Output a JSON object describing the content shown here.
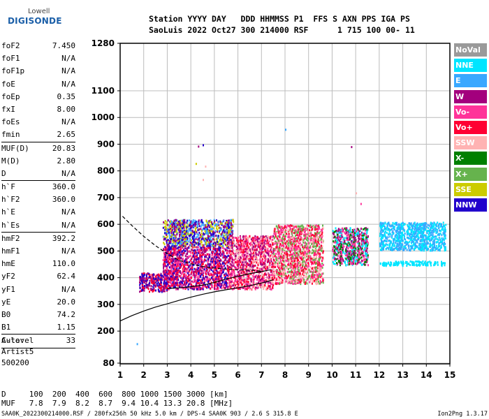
{
  "logo": {
    "company": "Lowell",
    "product": "DIGISONDE"
  },
  "header": {
    "line1": "Station YYYY DAY   DDD HHMMSS P1  FFS S AXN PPS IGA PS",
    "line2": "SaoLuis 2022 Oct27 300 214000 RSF      1 715 100 00- 11"
  },
  "parameters": [
    {
      "label": "foF2",
      "value": "7.450"
    },
    {
      "label": "foF1",
      "value": "N/A"
    },
    {
      "label": "foF1p",
      "value": "N/A"
    },
    {
      "label": "foE",
      "value": "N/A"
    },
    {
      "label": "foEp",
      "value": "0.35"
    },
    {
      "label": "fxI",
      "value": "8.00"
    },
    {
      "label": "foEs",
      "value": "N/A"
    },
    {
      "label": "fmin",
      "value": "2.65"
    },
    {
      "label": "MUF(D)",
      "value": "20.83"
    },
    {
      "label": "M(D)",
      "value": "2.80"
    },
    {
      "label": "D",
      "value": "N/A"
    },
    {
      "label": "h`F",
      "value": "360.0"
    },
    {
      "label": "h`F2",
      "value": "360.0"
    },
    {
      "label": "h`E",
      "value": "N/A"
    },
    {
      "label": "h`Es",
      "value": "N/A"
    },
    {
      "label": "hmF2",
      "value": "392.2"
    },
    {
      "label": "hmF1",
      "value": "N/A"
    },
    {
      "label": "hmE",
      "value": "110.0"
    },
    {
      "label": "yF2",
      "value": "62.4"
    },
    {
      "label": "yF1",
      "value": "N/A"
    },
    {
      "label": "yE",
      "value": "20.0"
    },
    {
      "label": "B0",
      "value": "74.2"
    },
    {
      "label": "B1",
      "value": "1.15"
    },
    {
      "label": "C-level",
      "value": "33"
    }
  ],
  "auto": {
    "line1": "Auto:",
    "line2": "Artist5",
    "line3": "500200"
  },
  "muf_table": {
    "distance_row": "D     100  200  400  600  800 1000 1500 3000 [km]",
    "muf_row": "MUF   7.8  7.9  8.2  8.7  9.4 10.4 13.3 20.8 [MHz]"
  },
  "footer": {
    "left": "SAA0K_2022300214000.RSF / 280fx256h 50 kHz 5.0 km / DPS-4 SAA0K 903 / 2.6 S 315.8 E",
    "right": "Ion2Png 1.3.17"
  },
  "legend": [
    {
      "label": "NoVal",
      "color": "#9a9a9a"
    },
    {
      "label": "NNE",
      "color": "#00e5ff"
    },
    {
      "label": "E",
      "color": "#39a8ff"
    },
    {
      "label": "W",
      "color": "#a3007d"
    },
    {
      "label": "Vo-",
      "color": "#ff3399"
    },
    {
      "label": "Vo+",
      "color": "#ff0033"
    },
    {
      "label": "SSW",
      "color": "#ffb3b3"
    },
    {
      "label": "X-",
      "color": "#008000"
    },
    {
      "label": "X+",
      "color": "#66b34d"
    },
    {
      "label": "SSE",
      "color": "#cccc00"
    },
    {
      "label": "NNW",
      "color": "#2200cc"
    }
  ],
  "chart_data": {
    "type": "scatter",
    "title": "",
    "xlabel": "",
    "ylabel": "",
    "xlim": [
      1,
      15
    ],
    "ylim": [
      80,
      1280
    ],
    "x_ticks": [
      1,
      2,
      3,
      4,
      5,
      6,
      7,
      8,
      9,
      10,
      11,
      12,
      13,
      14,
      15
    ],
    "y_ticks": [
      80,
      200,
      300,
      400,
      500,
      600,
      700,
      800,
      900,
      1000,
      1100,
      1280
    ],
    "grid": true,
    "legend_placement": "right",
    "series": [
      {
        "name": "Virtual height trace",
        "kind": "line",
        "style": "solid",
        "x": [
          1.0,
          1.5,
          2.0,
          2.5,
          3.0,
          3.5,
          4.0,
          4.5,
          5.0,
          5.5,
          6.0,
          6.5,
          7.0,
          7.5
        ],
        "y": [
          238,
          258,
          275,
          290,
          302,
          315,
          327,
          338,
          347,
          355,
          362,
          370,
          380,
          392
        ]
      },
      {
        "name": "Profile (lower)",
        "kind": "line",
        "style": "solid",
        "x": [
          3.0,
          3.5,
          4.0,
          4.5,
          5.0,
          5.5,
          6.0,
          6.5,
          7.0,
          7.4
        ],
        "y": [
          360,
          362,
          366,
          372,
          382,
          395,
          405,
          415,
          423,
          430
        ]
      },
      {
        "name": "Profile (dashed)",
        "kind": "line",
        "style": "dashed",
        "x": [
          1.1,
          1.5,
          2.0,
          2.5,
          3.0,
          3.5,
          4.0,
          4.5,
          5.0,
          5.5,
          6.0,
          6.5,
          7.0
        ],
        "y": [
          630,
          595,
          555,
          520,
          490,
          465,
          452,
          442,
          436,
          432,
          430,
          428,
          425
        ]
      }
    ],
    "echo_clusters": [
      {
        "x": [
          1.8,
          3.0
        ],
        "y": [
          350,
          420
        ],
        "colors": [
          "#2200cc",
          "#a3007d",
          "#ff0033"
        ]
      },
      {
        "x": [
          2.8,
          5.6
        ],
        "y": [
          360,
          520
        ],
        "colors": [
          "#ff0033",
          "#a3007d",
          "#ff3399",
          "#2200cc"
        ]
      },
      {
        "x": [
          2.8,
          5.8
        ],
        "y": [
          520,
          620
        ],
        "colors": [
          "#2200cc",
          "#39a8ff",
          "#cccc00",
          "#a3007d"
        ]
      },
      {
        "x": [
          5.6,
          7.5
        ],
        "y": [
          360,
          560
        ],
        "colors": [
          "#ff0033",
          "#ff3399",
          "#a3007d",
          "#ffb3b3"
        ]
      },
      {
        "x": [
          7.5,
          9.6
        ],
        "y": [
          380,
          600
        ],
        "colors": [
          "#ff3399",
          "#ffb3b3",
          "#66b34d",
          "#ff0033"
        ]
      },
      {
        "x": [
          10.0,
          11.5
        ],
        "y": [
          450,
          590
        ],
        "colors": [
          "#a3007d",
          "#ff3399",
          "#00e5ff",
          "#008000"
        ]
      },
      {
        "x": [
          12.0,
          14.8
        ],
        "y": [
          505,
          610
        ],
        "colors": [
          "#00e5ff",
          "#39a8ff"
        ]
      },
      {
        "x": [
          12.0,
          14.8
        ],
        "y": [
          448,
          465
        ],
        "colors": [
          "#00e5ff"
        ]
      }
    ]
  }
}
